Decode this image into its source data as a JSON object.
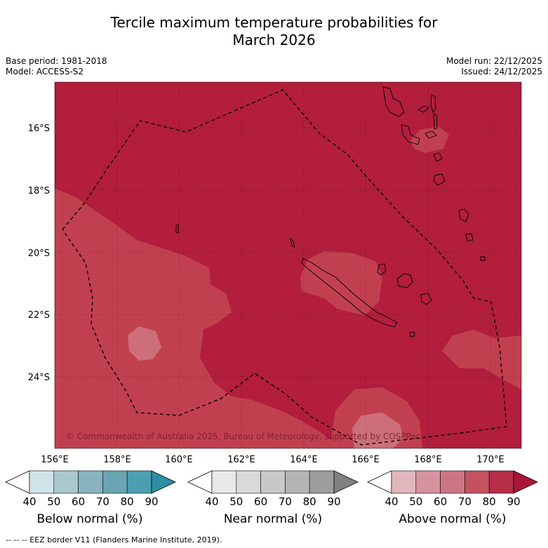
{
  "title_line1": "Tercile maximum temperature probabilities for",
  "title_line2": "March 2026",
  "base_period": "Base period: 1981-2018",
  "model": "Model: ACCESS-S2",
  "model_run": "Model run: 22/12/2025",
  "issued": "Issued: 24/12/2025",
  "copyright": "© Commonwealth of Australia 2025, Bureau of Meteorology, supported by COSPPac",
  "lon_ticks": [
    "156°E",
    "158°E",
    "160°E",
    "162°E",
    "164°E",
    "166°E",
    "168°E",
    "170°E"
  ],
  "lat_ticks": [
    "16°S",
    "18°S",
    "20°S",
    "22°S",
    "24°S"
  ],
  "colorbars": [
    {
      "title": "Below normal (%)",
      "labels": [
        "40",
        "50",
        "60",
        "70",
        "80",
        "90"
      ],
      "colors": [
        "#cfe3e8",
        "#a9c9cf",
        "#88b4bf",
        "#69a5b3",
        "#4aa0b0",
        "#2e8fa3"
      ]
    },
    {
      "title": "Near normal (%)",
      "labels": [
        "40",
        "50",
        "60",
        "70",
        "80",
        "90"
      ],
      "colors": [
        "#e9e9e9",
        "#d9d9d9",
        "#c8c8c8",
        "#b4b4b4",
        "#9d9d9d",
        "#808080"
      ]
    },
    {
      "title": "Above normal (%)",
      "labels": [
        "40",
        "50",
        "60",
        "70",
        "80",
        "90"
      ],
      "colors": [
        "#e2b6bf",
        "#d6939f",
        "#cd7683",
        "#c3525f",
        "#b62e48",
        "#a8173a"
      ]
    }
  ],
  "footer": "--  --  -- EEZ border V11 (Flanders Marine Institute, 2019)."
}
